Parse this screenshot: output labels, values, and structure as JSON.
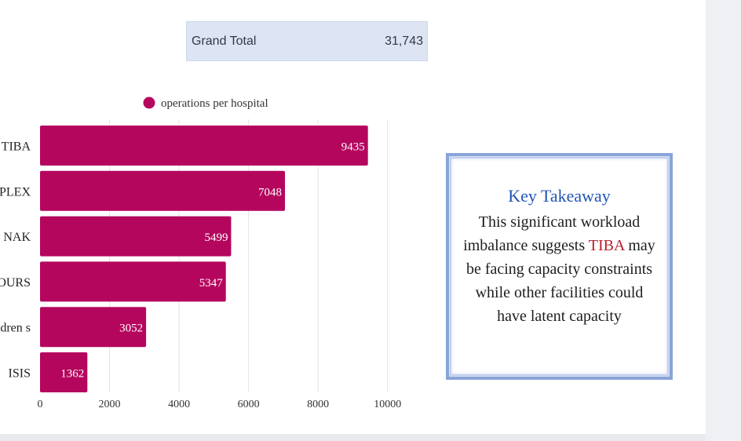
{
  "grand_total": {
    "label": "Grand Total",
    "value": "31,743"
  },
  "chart_data": {
    "type": "bar",
    "orientation": "horizontal",
    "legend": "operations per hospital",
    "categories": [
      "TIBA",
      "PLEX",
      "NAK",
      "OURS",
      "dren s",
      "ISIS"
    ],
    "values": [
      9435,
      7048,
      5499,
      5347,
      3052,
      1362
    ],
    "xlim": [
      0,
      11000
    ],
    "xticks": [
      0,
      2000,
      4000,
      6000,
      8000,
      10000
    ],
    "grid": true,
    "bar_color": "#b5065e"
  },
  "takeaway": {
    "title": "Key Takeaway",
    "text_before": "This significant workload imbalance suggests",
    "highlight": "TIBA",
    "text_after": "may be facing capacity constraints while other facilities could have latent capacity",
    "title_color": "#2355b5",
    "highlight_color": "#b81f2e",
    "border_color": "#8aa4d8"
  }
}
